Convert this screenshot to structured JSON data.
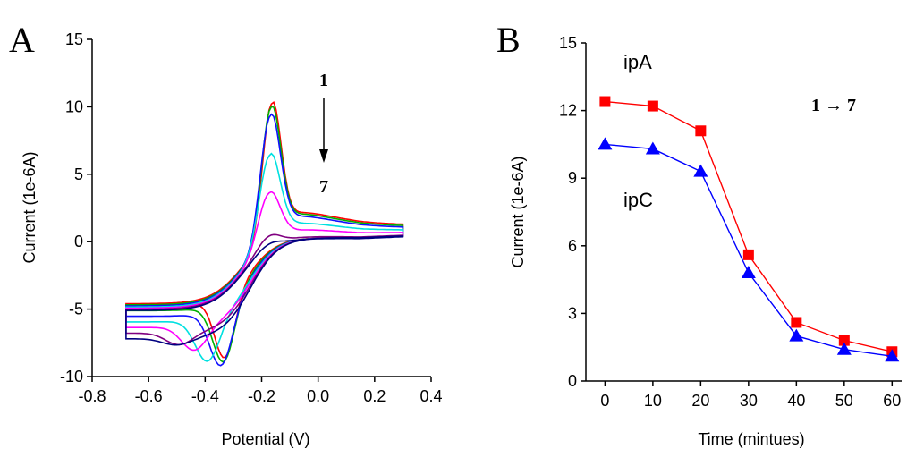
{
  "chart_data": [
    {
      "type": "line",
      "panel_label": "A",
      "xlabel": "Potential (V)",
      "ylabel": "Current (1e-6A)",
      "xlim": [
        -0.8,
        0.4
      ],
      "ylim": [
        -10,
        15
      ],
      "x_ticks": [
        "-0.8",
        "-0.6",
        "-0.4",
        "-0.2",
        "0.0",
        "0.2",
        "0.4"
      ],
      "y_ticks": [
        "-10",
        "-5",
        "0",
        "5",
        "10",
        "15"
      ],
      "x_tick_values": [
        -0.8,
        -0.6,
        -0.4,
        -0.2,
        0.0,
        0.2,
        0.4
      ],
      "y_tick_values": [
        -10,
        -5,
        0,
        5,
        10,
        15
      ],
      "grid": false,
      "annotation": {
        "top": "1",
        "bottom": "7"
      },
      "potential_range": [
        -0.68,
        0.3
      ],
      "series": [
        {
          "color": "#ff0000",
          "anodic_peak": 11.4,
          "cathodic_peak": -7.6
        },
        {
          "color": "#00b000",
          "anodic_peak": 11.2,
          "cathodic_peak": -7.5
        },
        {
          "color": "#1010ff",
          "anodic_peak": 10.7,
          "cathodic_peak": -7.3
        },
        {
          "color": "#00e0e0",
          "anodic_peak": 7.9,
          "cathodic_peak": -6.2
        },
        {
          "color": "#ff00ff",
          "anodic_peak": 5.2,
          "cathodic_peak": -4.8
        },
        {
          "color": "#800080",
          "anodic_peak": 2.1,
          "cathodic_peak": -3.9
        },
        {
          "color": "#000080",
          "anodic_peak": 1.6,
          "cathodic_peak": -3.5
        }
      ]
    },
    {
      "type": "line",
      "panel_label": "B",
      "xlabel": "Time (mintues)",
      "ylabel": "Current (1e-6A)",
      "xlim": [
        -4,
        62
      ],
      "ylim": [
        0,
        15
      ],
      "x_ticks": [
        "0",
        "10",
        "20",
        "30",
        "40",
        "50",
        "60"
      ],
      "y_ticks": [
        "0",
        "3",
        "6",
        "9",
        "12",
        "15"
      ],
      "x_tick_values": [
        0,
        10,
        20,
        30,
        40,
        50,
        60
      ],
      "y_tick_values": [
        0,
        3,
        6,
        9,
        12,
        15
      ],
      "grid": false,
      "annotation": "1 → 7",
      "x": [
        0,
        10,
        20,
        30,
        40,
        50,
        60
      ],
      "series": [
        {
          "name": "ipA",
          "marker": "square",
          "color": "#ff0000",
          "values": [
            12.4,
            12.2,
            11.1,
            5.6,
            2.6,
            1.8,
            1.3
          ]
        },
        {
          "name": "ipC",
          "marker": "triangle",
          "color": "#0000ff",
          "values": [
            10.5,
            10.3,
            9.3,
            4.8,
            2.0,
            1.4,
            1.1
          ]
        }
      ]
    }
  ]
}
